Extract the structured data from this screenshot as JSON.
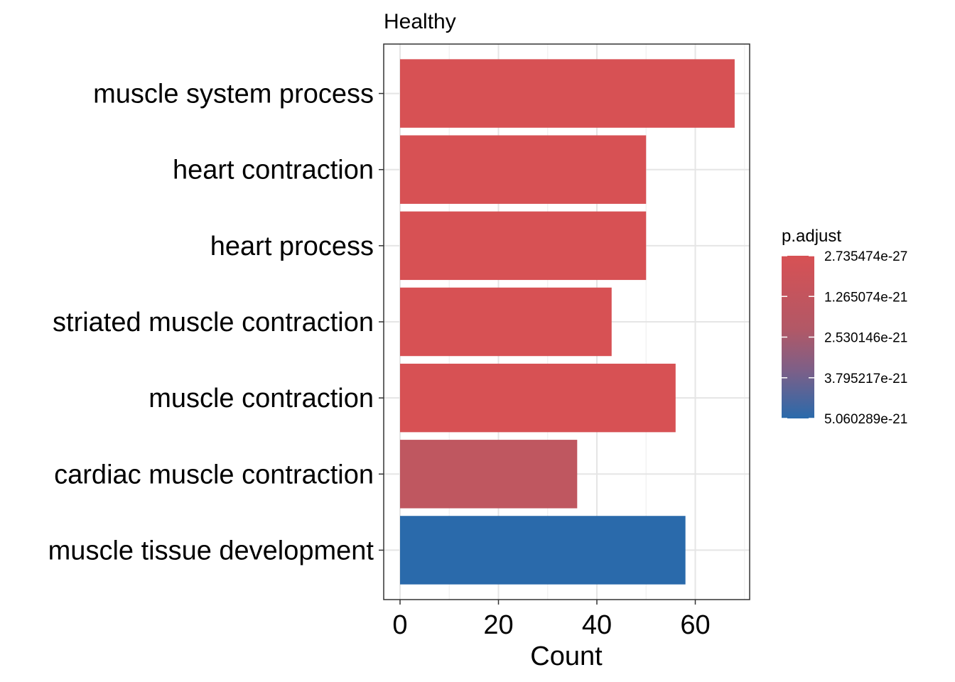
{
  "chart_data": {
    "type": "bar",
    "orientation": "horizontal",
    "title": "Healthy",
    "xlabel": "Count",
    "ylabel": "",
    "xlim": [
      0,
      70
    ],
    "x_ticks": [
      0,
      20,
      40,
      60
    ],
    "grid": true,
    "categories": [
      "muscle system process",
      "heart contraction",
      "heart process",
      "striated muscle contraction",
      "muscle contraction",
      "cardiac muscle contraction",
      "muscle tissue development"
    ],
    "values": [
      68,
      50,
      50,
      43,
      56,
      36,
      58
    ],
    "bar_colors": [
      "#d75154",
      "#d75154",
      "#d75154",
      "#d75154",
      "#d75154",
      "#bf5760",
      "#2a6aab"
    ],
    "legend": {
      "title": "p.adjust",
      "position": "right",
      "labels": [
        "2.735474e-27",
        "1.265074e-21",
        "2.530146e-21",
        "3.795217e-21",
        "5.060289e-21"
      ],
      "color_low": "#d75154",
      "color_high": "#2a6aab"
    }
  }
}
